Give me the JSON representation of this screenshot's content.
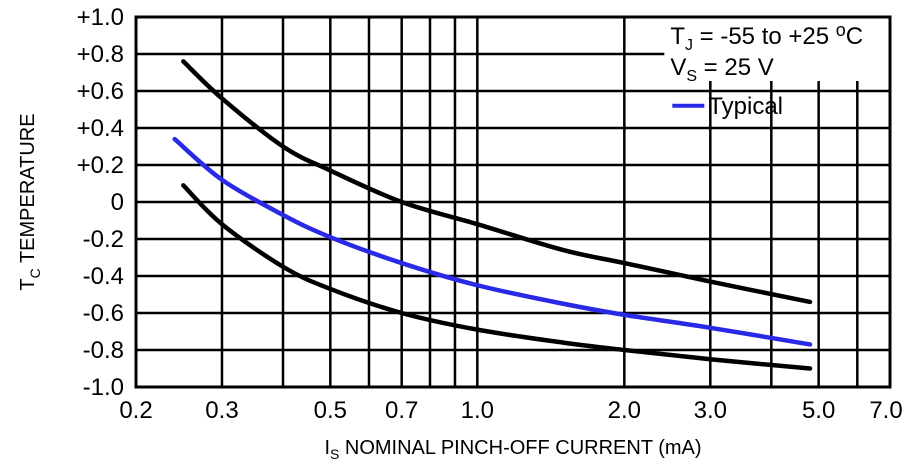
{
  "chart_data": {
    "type": "line",
    "xscale": "log",
    "xlim": [
      0.2,
      7.0
    ],
    "ylim": [
      -1.0,
      1.0
    ],
    "grid": true,
    "ylabel": {
      "main": "T",
      "sub": "C",
      "rest": " TEMPERATURE"
    },
    "xlabel": {
      "main": "I",
      "sub": "S",
      "rest": " NOMINAL PINCH-OFF CURRENT (mA)"
    },
    "xticks": [
      {
        "value": 0.2,
        "label": "0.2"
      },
      {
        "value": 0.3,
        "label": "0.3"
      },
      {
        "value": 0.5,
        "label": "0.5"
      },
      {
        "value": 0.7,
        "label": "0.7"
      },
      {
        "value": 1.0,
        "label": "1.0"
      },
      {
        "value": 2.0,
        "label": "2.0"
      },
      {
        "value": 3.0,
        "label": "3.0"
      },
      {
        "value": 5.0,
        "label": "5.0"
      },
      {
        "value": 7.0,
        "label": "7.0"
      }
    ],
    "xgrid": [
      0.2,
      0.3,
      0.4,
      0.5,
      0.6,
      0.7,
      0.8,
      0.9,
      1.0,
      2.0,
      3.0,
      4.0,
      5.0,
      6.0,
      7.0
    ],
    "yticks": [
      {
        "value": 1.0,
        "label": "+1.0"
      },
      {
        "value": 0.8,
        "label": "+0.8"
      },
      {
        "value": 0.6,
        "label": "+0.6"
      },
      {
        "value": 0.4,
        "label": "+0.4"
      },
      {
        "value": 0.2,
        "label": "+0.2"
      },
      {
        "value": 0.0,
        "label": "0"
      },
      {
        "value": -0.2,
        "label": "-0.2"
      },
      {
        "value": -0.4,
        "label": "-0.4"
      },
      {
        "value": -0.6,
        "label": "-0.6"
      },
      {
        "value": -0.8,
        "label": "-0.8"
      },
      {
        "value": -1.0,
        "label": "-1.0"
      }
    ],
    "annotations": {
      "line1": {
        "main": "T",
        "sub": "J",
        "rest": " = -55 to +25 ",
        "sup": "o",
        "end": "C"
      },
      "line2": {
        "main": "V",
        "sub": "S",
        "rest": " = 25 V"
      }
    },
    "legend": {
      "placement": "top-right",
      "label": "Typical"
    },
    "series": [
      {
        "color": "#000000",
        "x": [
          0.25,
          0.3,
          0.4,
          0.5,
          0.7,
          1.0,
          1.5,
          2.0,
          3.0,
          4.8
        ],
        "y": [
          0.76,
          0.56,
          0.3,
          0.17,
          0.0,
          -0.12,
          -0.26,
          -0.33,
          -0.43,
          -0.54
        ]
      },
      {
        "name": "Typical",
        "color": "#2a2ae6",
        "x": [
          0.24,
          0.3,
          0.4,
          0.5,
          0.7,
          1.0,
          1.5,
          2.0,
          3.0,
          4.8
        ],
        "y": [
          0.34,
          0.12,
          -0.07,
          -0.19,
          -0.33,
          -0.45,
          -0.55,
          -0.61,
          -0.68,
          -0.77
        ]
      },
      {
        "color": "#000000",
        "x": [
          0.25,
          0.3,
          0.4,
          0.5,
          0.7,
          1.0,
          1.5,
          2.0,
          3.0,
          4.8
        ],
        "y": [
          0.09,
          -0.12,
          -0.35,
          -0.47,
          -0.6,
          -0.69,
          -0.76,
          -0.8,
          -0.85,
          -0.9
        ]
      }
    ]
  }
}
